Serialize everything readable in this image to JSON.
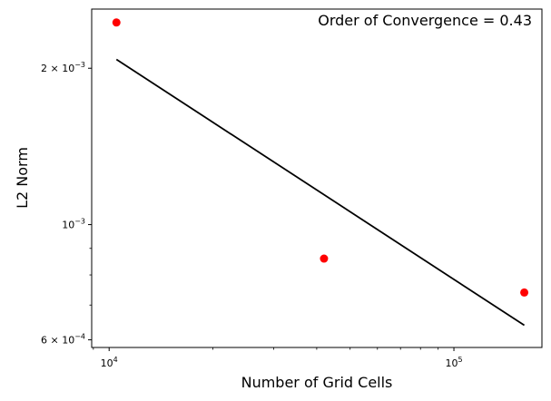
{
  "chart_data": {
    "type": "scatter",
    "title": "",
    "xlabel": "Number of Grid Cells",
    "ylabel": "L2 Norm",
    "xscale": "log",
    "yscale": "log",
    "xlim": [
      8900,
      180000
    ],
    "ylim": [
      0.00058,
      0.0026
    ],
    "grid": false,
    "colors": {
      "points": "#ff0000",
      "fit": "#000000"
    },
    "annotation": "Order of Convergence = 0.43",
    "x_ticks": [
      {
        "value": 10000,
        "base": "10",
        "exp": "4"
      },
      {
        "value": 100000,
        "base": "10",
        "exp": "5"
      }
    ],
    "y_ticks": [
      {
        "value": 0.0006,
        "mant": "6 × 10",
        "exp": "−4"
      },
      {
        "value": 0.001,
        "mant": "10",
        "exp": "−3"
      },
      {
        "value": 0.002,
        "mant": "2 × 10",
        "exp": "−3"
      }
    ],
    "series": [
      {
        "type": "scatter",
        "x": [
          10500,
          42000,
          160000
        ],
        "y": [
          0.00245,
          0.00086,
          0.00074
        ]
      },
      {
        "type": "line",
        "x": [
          10500,
          160000
        ],
        "y": [
          0.00208,
          0.00064
        ]
      }
    ]
  }
}
